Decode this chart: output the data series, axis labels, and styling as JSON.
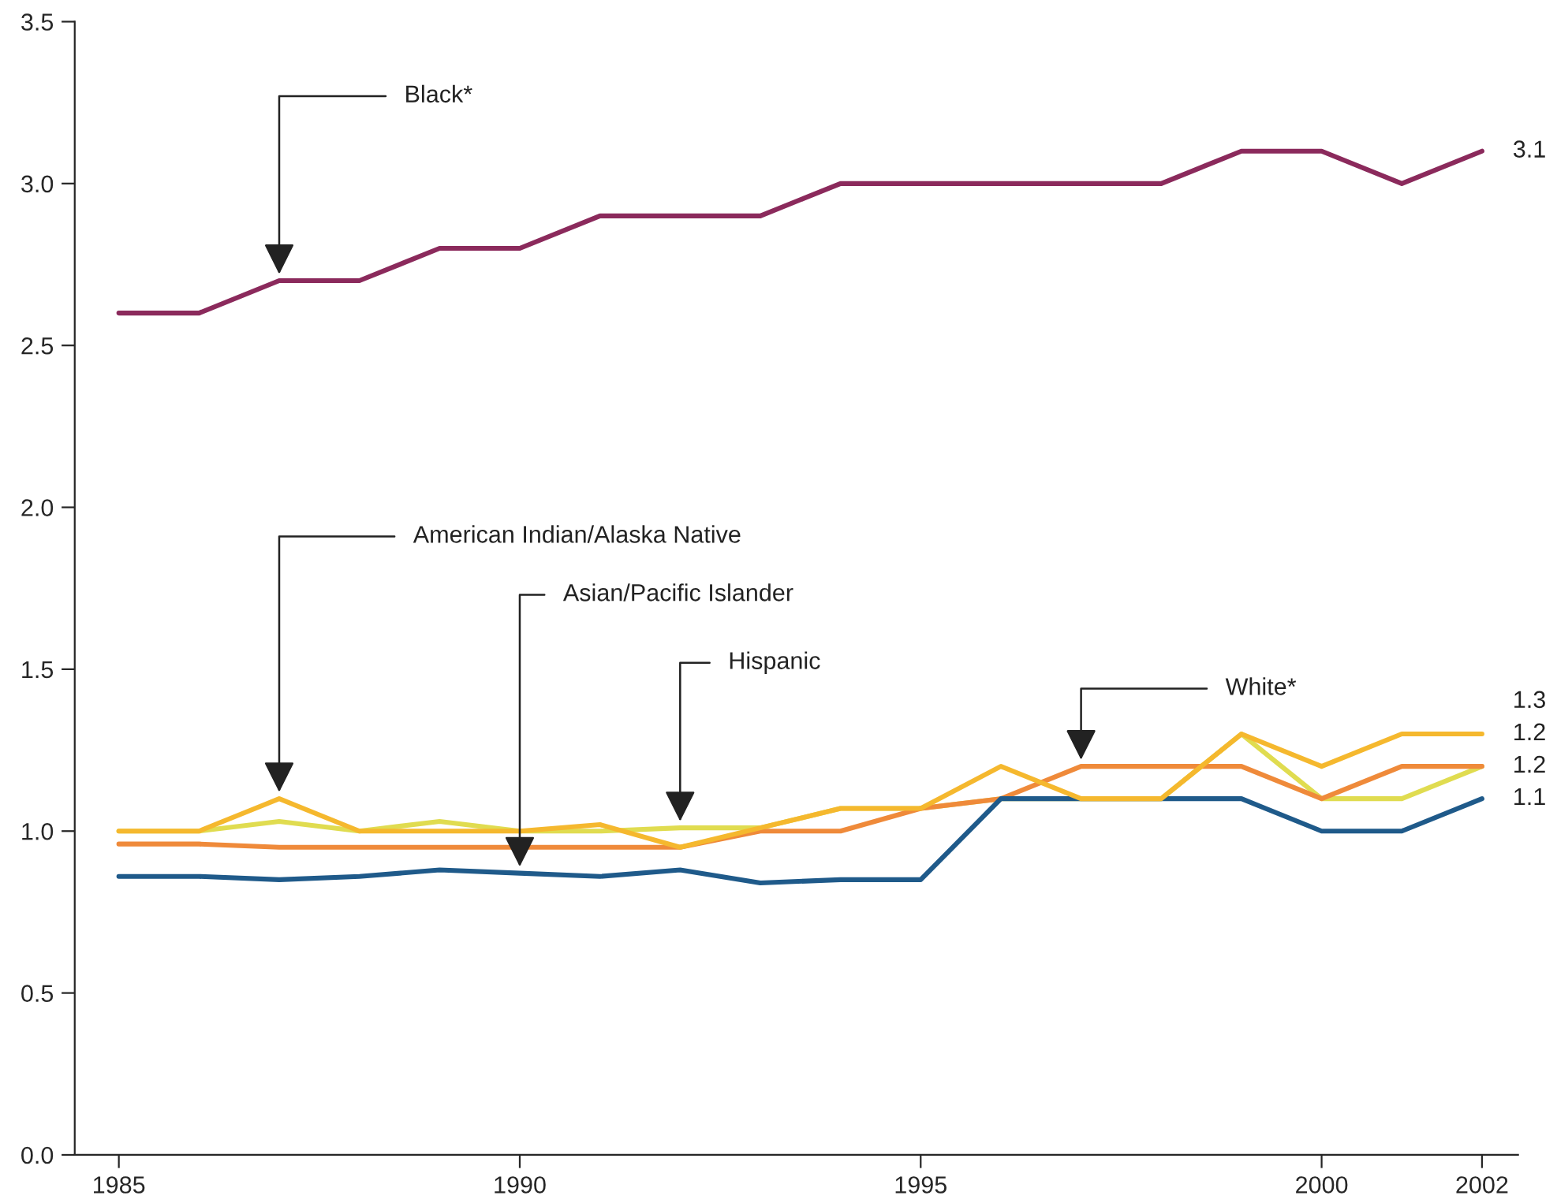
{
  "chart_data": {
    "type": "line",
    "x": [
      1985,
      1986,
      1987,
      1988,
      1989,
      1990,
      1991,
      1992,
      1993,
      1994,
      1995,
      1996,
      1997,
      1998,
      1999,
      2000,
      2001,
      2002
    ],
    "series": [
      {
        "color": "#8b2a5c",
        "values": [
          2.6,
          2.6,
          2.7,
          2.7,
          2.8,
          2.8,
          2.9,
          2.9,
          2.9,
          3.0,
          3.0,
          3.0,
          3.0,
          3.0,
          3.1,
          3.1,
          3.0,
          3.1
        ],
        "value_labels": [
          null,
          null,
          null,
          null,
          null,
          null,
          null,
          null,
          null,
          null,
          null,
          null,
          null,
          null,
          null,
          null,
          null,
          "3.1"
        ]
      },
      {
        "color": "#e0dc50",
        "values": [
          1.0,
          1.0,
          1.03,
          1.0,
          1.03,
          1.0,
          1.0,
          1.01,
          1.01,
          1.07,
          1.07,
          1.1,
          1.1,
          1.1,
          1.3,
          1.1,
          1.1,
          1.2
        ],
        "value_labels": [
          null,
          null,
          null,
          null,
          null,
          null,
          null,
          null,
          null,
          null,
          null,
          null,
          null,
          null,
          null,
          null,
          null,
          "1.2"
        ]
      },
      {
        "color": "#ef8a3a",
        "values": [
          0.96,
          0.96,
          0.95,
          0.95,
          0.95,
          0.95,
          0.95,
          0.95,
          1.0,
          1.0,
          1.07,
          1.1,
          1.2,
          1.2,
          1.2,
          1.1,
          1.2,
          1.2
        ],
        "value_labels": [
          null,
          null,
          null,
          null,
          null,
          null,
          null,
          null,
          null,
          null,
          null,
          null,
          null,
          null,
          null,
          null,
          null,
          "1.2"
        ]
      },
      {
        "color": "#1f5a8a",
        "values": [
          0.86,
          0.86,
          0.85,
          0.86,
          0.88,
          0.87,
          0.86,
          0.88,
          0.84,
          0.85,
          0.85,
          1.1,
          1.1,
          1.1,
          1.1,
          1.0,
          1.0,
          1.1
        ],
        "value_labels": [
          null,
          null,
          null,
          null,
          null,
          null,
          null,
          null,
          null,
          null,
          null,
          null,
          null,
          null,
          null,
          null,
          null,
          "1.1"
        ]
      },
      {
        "color": "#f5b82e",
        "values": [
          1.0,
          1.0,
          1.1,
          1.0,
          1.0,
          1.0,
          1.02,
          0.95,
          1.01,
          1.07,
          1.07,
          1.2,
          1.1,
          1.1,
          1.3,
          1.2,
          1.3,
          1.3
        ],
        "value_labels": [
          null,
          null,
          null,
          null,
          null,
          null,
          null,
          null,
          null,
          null,
          null,
          null,
          null,
          null,
          null,
          null,
          null,
          "1.3"
        ]
      }
    ],
    "annotations": [
      {
        "text": "Black*",
        "x": 1987,
        "y": 2.7
      },
      {
        "text": "American Indian/Alaska Native",
        "x": 1987,
        "y": 1.1
      },
      {
        "text": "Asian/Pacific Islander",
        "x": 1990,
        "y": 0.87
      },
      {
        "text": "Hispanic",
        "x": 1992,
        "y": 1.01
      },
      {
        "text": "White*",
        "x": 1997,
        "y": 1.2
      }
    ],
    "xlim": [
      1984.45,
      2002.45
    ],
    "xticks": [
      1985,
      1990,
      1995,
      2000,
      2002
    ],
    "ylim": [
      0,
      3.5
    ],
    "yticks": [
      {
        "value": 0,
        "label": "0.0"
      },
      {
        "value": 0.5,
        "label": "0.5"
      },
      {
        "value": 1,
        "label": "1.0"
      },
      {
        "value": 1.5,
        "label": "1.5"
      },
      {
        "value": 2,
        "label": "2.0"
      },
      {
        "value": 2.5,
        "label": "2.5"
      },
      {
        "value": 3,
        "label": "3.0"
      },
      {
        "value": 3.5,
        "label": "3.5"
      }
    ],
    "grid": false,
    "legend": false,
    "marker": "none",
    "line_style": "solid"
  }
}
